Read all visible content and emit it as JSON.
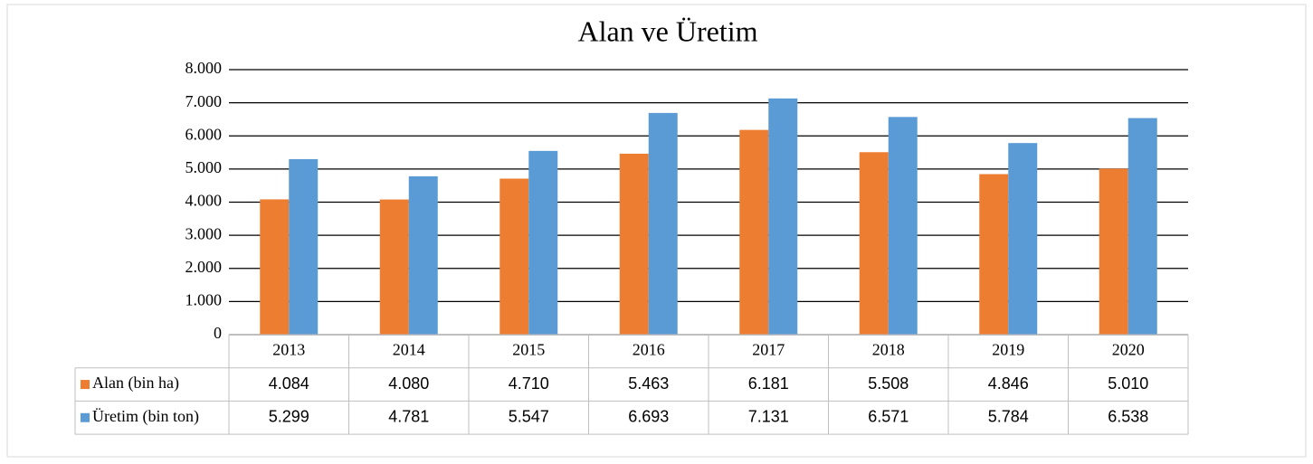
{
  "chart_data": {
    "type": "bar",
    "title": "Alan ve Üretim",
    "categories": [
      "2013",
      "2014",
      "2015",
      "2016",
      "2017",
      "2018",
      "2019",
      "2020"
    ],
    "series": [
      {
        "name": "Alan (bin ha)",
        "color": "#ed7d31",
        "values": [
          4084,
          4080,
          4710,
          5463,
          6181,
          5508,
          4846,
          5010
        ],
        "value_labels": [
          "4.084",
          "4.080",
          "4.710",
          "5.463",
          "6.181",
          "5.508",
          "4.846",
          "5.010"
        ]
      },
      {
        "name": "Üretim (bin ton)",
        "color": "#5b9bd5",
        "values": [
          5299,
          4781,
          5547,
          6693,
          7131,
          6571,
          5784,
          6538
        ],
        "value_labels": [
          "5.299",
          "4.781",
          "5.547",
          "6.693",
          "7.131",
          "6.571",
          "5.784",
          "6.538"
        ]
      }
    ],
    "ylim": [
      0,
      8000
    ],
    "yticks": [
      0,
      {
        "value": 1000,
        "label": "1.000"
      },
      {
        "value": 2000,
        "label": "2.000"
      },
      {
        "value": 3000,
        "label": "3.000"
      },
      {
        "value": 4000,
        "label": "4.000"
      },
      {
        "value": 5000,
        "label": "5.000"
      },
      {
        "value": 6000,
        "label": "6.000"
      },
      {
        "value": 7000,
        "label": "7.000"
      },
      {
        "value": 8000,
        "label": "8.000"
      }
    ],
    "grid": true
  }
}
